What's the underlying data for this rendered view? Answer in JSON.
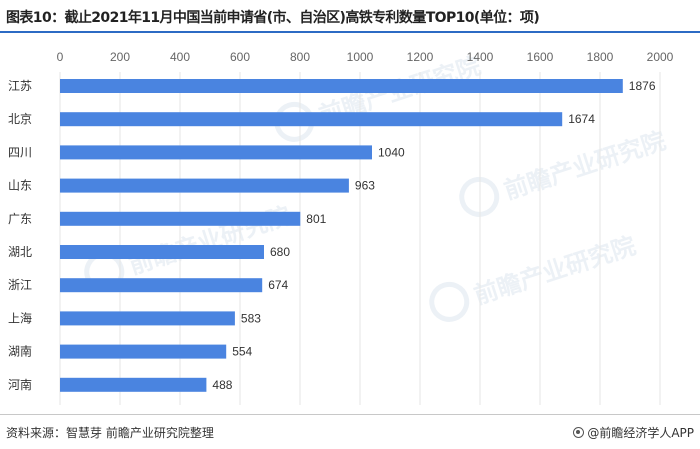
{
  "title": "图表10：截止2021年11月中国当前申请省(市、自治区)高铁专利数量TOP10(单位：项)",
  "source": "资料来源：智慧芽 前瞻产业研究院整理",
  "credit": "@前瞻经济学人APP",
  "watermark": "前瞻产业研究院",
  "colors": {
    "bar": "#4a84e0",
    "accent": "#2c6bc4",
    "grid": "#e6e6e6"
  },
  "chart_data": {
    "type": "bar",
    "orientation": "horizontal",
    "categories": [
      "江苏",
      "北京",
      "四川",
      "山东",
      "广东",
      "湖北",
      "浙江",
      "上海",
      "湖南",
      "河南"
    ],
    "values": [
      1876,
      1674,
      1040,
      963,
      801,
      680,
      674,
      583,
      554,
      488
    ],
    "xlim": [
      0,
      2000
    ],
    "xticks": [
      0,
      200,
      400,
      600,
      800,
      1000,
      1200,
      1400,
      1600,
      1800,
      2000
    ],
    "xaxis_position": "top",
    "grid": true
  }
}
